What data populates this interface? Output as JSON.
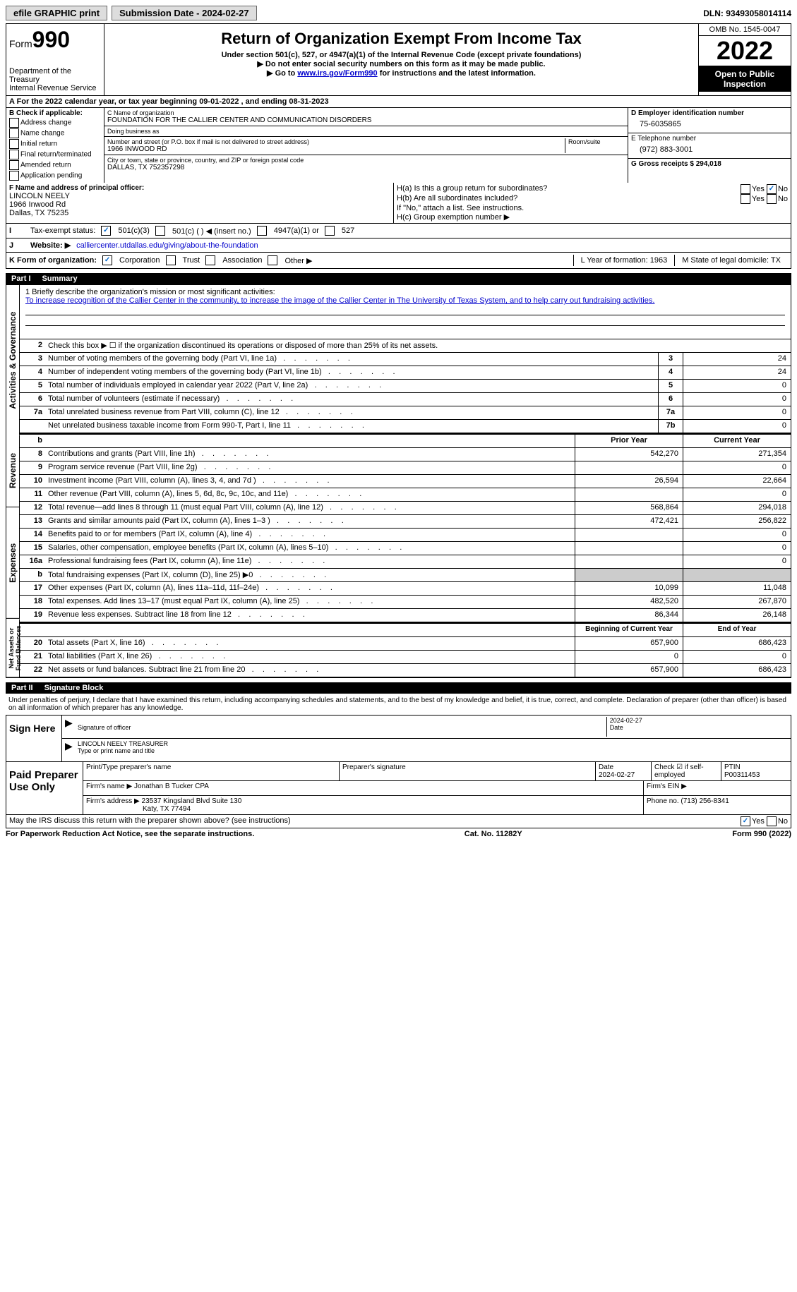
{
  "topbar": {
    "efile_label": "efile GRAPHIC print",
    "submission_label": "Submission Date - 2024-02-27",
    "dln_label": "DLN: 93493058014114"
  },
  "header": {
    "form_label": "Form",
    "form_number": "990",
    "dept": "Department of the Treasury",
    "irs": "Internal Revenue Service",
    "title": "Return of Organization Exempt From Income Tax",
    "sub": "Under section 501(c), 527, or 4947(a)(1) of the Internal Revenue Code (except private foundations)",
    "arrow1": "▶ Do not enter social security numbers on this form as it may be made public.",
    "arrow2_pre": "▶ Go to ",
    "arrow2_link": "www.irs.gov/Form990",
    "arrow2_post": " for instructions and the latest information.",
    "omb": "OMB No. 1545-0047",
    "year": "2022",
    "inspection": "Open to Public Inspection"
  },
  "row_a": "A For the 2022 calendar year, or tax year beginning 09-01-2022    , and ending 08-31-2023",
  "col_b": {
    "heading": "B Check if applicable:",
    "items": [
      "Address change",
      "Name change",
      "Initial return",
      "Final return/terminated",
      "Amended return",
      "Application pending"
    ]
  },
  "col_c": {
    "name_label": "C Name of organization",
    "name": "FOUNDATION FOR THE CALLIER CENTER AND COMMUNICATION DISORDERS",
    "dba_label": "Doing business as",
    "dba": "",
    "addr_label": "Number and street (or P.O. box if mail is not delivered to street address)",
    "room_label": "Room/suite",
    "addr": "1966 INWOOD RD",
    "city_label": "City or town, state or province, country, and ZIP or foreign postal code",
    "city": "DALLAS, TX  752357298"
  },
  "col_d": {
    "ein_label": "D Employer identification number",
    "ein": "75-6035865",
    "phone_label": "E Telephone number",
    "phone": "(972) 883-3001",
    "gross_label": "G Gross receipts $ 294,018"
  },
  "col_f": {
    "label": "F  Name and address of principal officer:",
    "name": "LINCOLN NEELY",
    "addr1": "1966 Inwood Rd",
    "addr2": "Dallas, TX  75235"
  },
  "col_h": {
    "ha": "H(a)  Is this a group return for subordinates?",
    "hb": "H(b)  Are all subordinates included?",
    "hb_note": "If \"No,\" attach a list. See instructions.",
    "hc": "H(c)  Group exemption number ▶"
  },
  "row_i": {
    "label": "Tax-exempt status:",
    "opt1": "501(c)(3)",
    "opt2": "501(c) (  ) ◀ (insert no.)",
    "opt3": "4947(a)(1) or",
    "opt4": "527"
  },
  "row_j": {
    "label": "Website: ▶",
    "val": "calliercenter.utdallas.edu/giving/about-the-foundation"
  },
  "row_k": {
    "label": "K Form of organization:",
    "opts": [
      "Corporation",
      "Trust",
      "Association",
      "Other ▶"
    ],
    "l_label": "L Year of formation: 1963",
    "m_label": "M State of legal domicile: TX"
  },
  "part1": {
    "pn": "Part I",
    "title": "Summary"
  },
  "mission": {
    "label": "1  Briefly describe the organization's mission or most significant activities:",
    "text": "To increase recognition of the Callier Center in the community, to increase the image of the Callier Center in The University of Texas System, and to help carry out fundraising activities."
  },
  "line2": "Check this box ▶ ☐ if the organization discontinued its operations or disposed of more than 25% of its net assets.",
  "vtabs": {
    "ag": "Activities & Governance",
    "rev": "Revenue",
    "exp": "Expenses",
    "na": "Net Assets or Fund Balances"
  },
  "ag_rows": [
    {
      "n": "3",
      "d": "Number of voting members of the governing body (Part VI, line 1a)",
      "box": "3",
      "v": "24"
    },
    {
      "n": "4",
      "d": "Number of independent voting members of the governing body (Part VI, line 1b)",
      "box": "4",
      "v": "24"
    },
    {
      "n": "5",
      "d": "Total number of individuals employed in calendar year 2022 (Part V, line 2a)",
      "box": "5",
      "v": "0"
    },
    {
      "n": "6",
      "d": "Total number of volunteers (estimate if necessary)",
      "box": "6",
      "v": "0"
    },
    {
      "n": "7a",
      "d": "Total unrelated business revenue from Part VIII, column (C), line 12",
      "box": "7a",
      "v": "0"
    },
    {
      "n": "",
      "d": "Net unrelated business taxable income from Form 990-T, Part I, line 11",
      "box": "7b",
      "v": "0"
    }
  ],
  "ry_header": {
    "py": "Prior Year",
    "cy": "Current Year"
  },
  "rev_rows": [
    {
      "n": "8",
      "d": "Contributions and grants (Part VIII, line 1h)",
      "py": "542,270",
      "cy": "271,354"
    },
    {
      "n": "9",
      "d": "Program service revenue (Part VIII, line 2g)",
      "py": "",
      "cy": "0"
    },
    {
      "n": "10",
      "d": "Investment income (Part VIII, column (A), lines 3, 4, and 7d )",
      "py": "26,594",
      "cy": "22,664"
    },
    {
      "n": "11",
      "d": "Other revenue (Part VIII, column (A), lines 5, 6d, 8c, 9c, 10c, and 11e)",
      "py": "",
      "cy": "0"
    },
    {
      "n": "12",
      "d": "Total revenue—add lines 8 through 11 (must equal Part VIII, column (A), line 12)",
      "py": "568,864",
      "cy": "294,018"
    }
  ],
  "exp_rows": [
    {
      "n": "13",
      "d": "Grants and similar amounts paid (Part IX, column (A), lines 1–3 )",
      "py": "472,421",
      "cy": "256,822"
    },
    {
      "n": "14",
      "d": "Benefits paid to or for members (Part IX, column (A), line 4)",
      "py": "",
      "cy": "0"
    },
    {
      "n": "15",
      "d": "Salaries, other compensation, employee benefits (Part IX, column (A), lines 5–10)",
      "py": "",
      "cy": "0"
    },
    {
      "n": "16a",
      "d": "Professional fundraising fees (Part IX, column (A), line 11e)",
      "py": "",
      "cy": "0"
    },
    {
      "n": "b",
      "d": "Total fundraising expenses (Part IX, column (D), line 25) ▶0",
      "py": "shade",
      "cy": "shade"
    },
    {
      "n": "17",
      "d": "Other expenses (Part IX, column (A), lines 11a–11d, 11f–24e)",
      "py": "10,099",
      "cy": "11,048"
    },
    {
      "n": "18",
      "d": "Total expenses. Add lines 13–17 (must equal Part IX, column (A), line 25)",
      "py": "482,520",
      "cy": "267,870"
    },
    {
      "n": "19",
      "d": "Revenue less expenses. Subtract line 18 from line 12",
      "py": "86,344",
      "cy": "26,148"
    }
  ],
  "na_header": {
    "py": "Beginning of Current Year",
    "cy": "End of Year"
  },
  "na_rows": [
    {
      "n": "20",
      "d": "Total assets (Part X, line 16)",
      "py": "657,900",
      "cy": "686,423"
    },
    {
      "n": "21",
      "d": "Total liabilities (Part X, line 26)",
      "py": "0",
      "cy": "0"
    },
    {
      "n": "22",
      "d": "Net assets or fund balances. Subtract line 21 from line 20",
      "py": "657,900",
      "cy": "686,423"
    }
  ],
  "part2": {
    "pn": "Part II",
    "title": "Signature Block"
  },
  "sig_intro": "Under penalties of perjury, I declare that I have examined this return, including accompanying schedules and statements, and to the best of my knowledge and belief, it is true, correct, and complete. Declaration of preparer (other than officer) is based on all information of which preparer has any knowledge.",
  "sign_here": "Sign Here",
  "sig_officer_label": "Signature of officer",
  "sig_date": "2024-02-27",
  "sig_name": "LINCOLN NEELY TREASURER",
  "sig_name_label": "Type or print name and title",
  "paid_label": "Paid Preparer Use Only",
  "prep": {
    "name_label": "Print/Type preparer's name",
    "sig_label": "Preparer's signature",
    "date_label": "Date",
    "date": "2024-02-27",
    "check_label": "Check ☑ if self-employed",
    "ptin_label": "PTIN",
    "ptin": "P00311453",
    "firm_name_label": "Firm's name    ▶",
    "firm_name": "Jonathan B Tucker CPA",
    "firm_ein_label": "Firm's EIN ▶",
    "firm_addr_label": "Firm's address ▶",
    "firm_addr1": "23537 Kingsland Blvd Suite 130",
    "firm_addr2": "Katy, TX  77494",
    "firm_phone_label": "Phone no. (713) 256-8341"
  },
  "discuss": "May the IRS discuss this return with the preparer shown above? (see instructions)",
  "footer": {
    "left": "For Paperwork Reduction Act Notice, see the separate instructions.",
    "mid": "Cat. No. 11282Y",
    "right": "Form 990 (2022)"
  },
  "yes": "Yes",
  "no": "No"
}
